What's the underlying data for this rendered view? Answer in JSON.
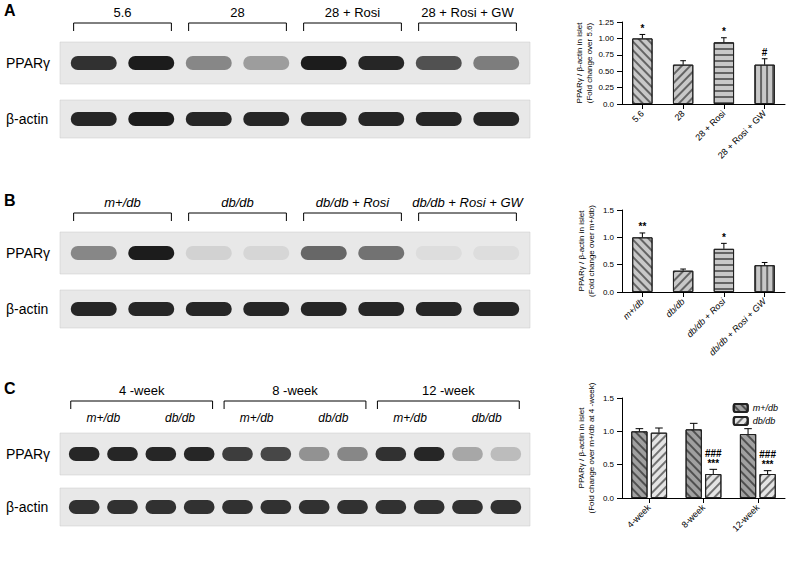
{
  "chart_data": [
    {
      "type": "bar",
      "y_label": [
        "PPARγ / β-actin in islet",
        "(Fold change over 5.6)"
      ],
      "categories": [
        "5.6",
        "28",
        "28 + Rosi",
        "28 + Rosi + GW"
      ],
      "values": [
        1.0,
        0.6,
        0.94,
        0.6
      ],
      "errors": [
        0.06,
        0.06,
        0.07,
        0.09
      ],
      "annotations": [
        "*",
        "",
        "*",
        "#"
      ],
      "color": "#c8c8c8",
      "ylim": [
        0,
        1.25
      ],
      "yticks": [
        {
          "value": 0,
          "label": "0.0"
        },
        0.25,
        {
          "value": 0.5,
          "label": "0.50"
        },
        0.75,
        {
          "value": 1,
          "label": "1.00"
        },
        1.25
      ],
      "grid": false
    },
    {
      "type": "bar",
      "y_label": [
        "PPARγ / β-actin in islet",
        "(Fold change over m+/db)"
      ],
      "categories": [
        "m+/db",
        "db/db",
        "db/db + Rosi",
        "db/db + Rosi + GW"
      ],
      "values": [
        1.0,
        0.39,
        0.79,
        0.49
      ],
      "errors": [
        0.08,
        0.03,
        0.1,
        0.05
      ],
      "annotations": [
        "**",
        "",
        "*",
        ""
      ],
      "color": "#c8c8c8",
      "ylim": [
        0,
        1.5
      ],
      "yticks": [
        {
          "value": 0,
          "label": "0.0"
        },
        0.5,
        {
          "value": 1,
          "label": "1.0"
        },
        1.5
      ],
      "grid": false
    },
    {
      "type": "bar",
      "y_label": [
        "PPARγ / β-actin in islet",
        "(Fold change over m+/db at 4 -week)"
      ],
      "categories": [
        "4-week",
        "8-week",
        "12-week"
      ],
      "series": [
        {
          "name": "m+/db",
          "color": "#a0a0a0",
          "values": [
            1.0,
            1.03,
            0.96
          ],
          "errors": [
            0.04,
            0.09,
            0.08
          ],
          "annotations": [
            "",
            "",
            ""
          ]
        },
        {
          "name": "db/db",
          "color": "#e4e4e4",
          "values": [
            0.98,
            0.36,
            0.36
          ],
          "errors": [
            0.07,
            0.07,
            0.05
          ],
          "annotations": [
            "",
            "###\n***",
            "###\n***"
          ]
        }
      ],
      "legend": "upper right",
      "ylim": [
        0,
        1.5
      ],
      "yticks": [
        {
          "value": 0,
          "label": "0.0"
        },
        0.5,
        {
          "value": 1,
          "label": "1.0"
        },
        1.5
      ],
      "grid": false
    }
  ],
  "blots": [
    {
      "panel": "A",
      "groups": [
        "5.6",
        "28",
        "28 + Rosi",
        "28 + Rosi + GW"
      ],
      "lanes_per_label": 2,
      "rows": [
        {
          "label": "PPARγ",
          "intensity": [
            0.85,
            0.95,
            0.45,
            0.35,
            0.95,
            0.9,
            0.7,
            0.5
          ]
        },
        {
          "label": "β-actin",
          "intensity": [
            0.9,
            0.95,
            0.9,
            0.9,
            0.9,
            0.9,
            0.9,
            0.9
          ]
        }
      ]
    },
    {
      "panel": "B",
      "groups": [
        "m+/db",
        "db/db",
        "db/db + Rosi",
        "db/db + Rosi + GW"
      ],
      "lanes_per_label": 2,
      "rows": [
        {
          "label": "PPARγ",
          "intensity": [
            0.45,
            0.95,
            0.1,
            0.08,
            0.6,
            0.55,
            0.05,
            0.05
          ]
        },
        {
          "label": "β-actin",
          "intensity": [
            0.9,
            0.9,
            0.9,
            0.9,
            0.9,
            0.9,
            0.9,
            0.9
          ]
        }
      ]
    },
    {
      "panel": "C",
      "groups": [
        "4 -week",
        "8 -week",
        "12 -week"
      ],
      "subgroups": [
        "m+/db",
        "db/db"
      ],
      "lanes_per_label": 2,
      "rows": [
        {
          "label": "PPARγ",
          "intensity": [
            0.9,
            0.9,
            0.9,
            0.9,
            0.8,
            0.75,
            0.4,
            0.45,
            0.85,
            0.9,
            0.3,
            0.2
          ]
        },
        {
          "label": "β-actin",
          "intensity": [
            0.85,
            0.85,
            0.85,
            0.85,
            0.85,
            0.85,
            0.85,
            0.85,
            0.85,
            0.85,
            0.85,
            0.85
          ]
        }
      ]
    }
  ]
}
